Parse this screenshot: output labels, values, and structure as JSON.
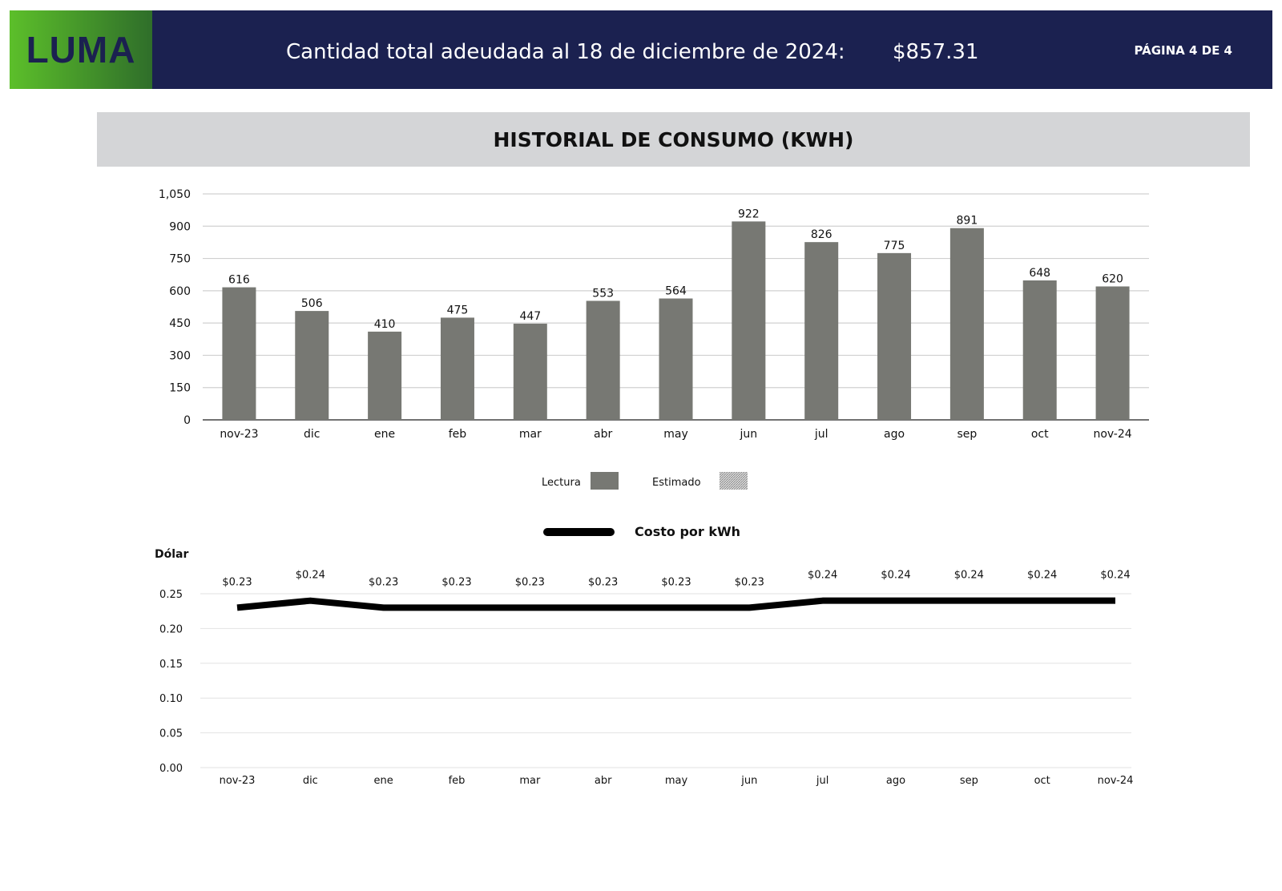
{
  "header": {
    "logo_text": "LUMA",
    "title": "Cantidad total adeudada al 18 de diciembre de 2024:",
    "amount": "$857.31",
    "page": "PÁGINA 4 DE 4",
    "colors": {
      "navy": "#1b2150",
      "green": "#5cbf2a"
    }
  },
  "section": {
    "title": "HISTORIAL DE CONSUMO (KWH)"
  },
  "chart_data": [
    {
      "type": "bar",
      "categories": [
        "nov-23",
        "dic",
        "ene",
        "feb",
        "mar",
        "abr",
        "may",
        "jun",
        "jul",
        "ago",
        "sep",
        "oct",
        "nov-24"
      ],
      "values": [
        616,
        506,
        410,
        475,
        447,
        553,
        564,
        922,
        826,
        775,
        891,
        648,
        620
      ],
      "ylim": [
        0,
        1050
      ],
      "yticks": [
        0,
        150,
        300,
        450,
        600,
        750,
        900,
        1050
      ],
      "ytick_labels": [
        "0",
        "150",
        "300",
        "450",
        "600",
        "750",
        "900",
        "1,050"
      ],
      "grid": true,
      "bar_color": "#777873",
      "legend": {
        "placement": "bottom",
        "entries": [
          {
            "name": "Lectura",
            "style": "solid",
            "color": "#777873"
          },
          {
            "name": "Estimado",
            "style": "hatched",
            "color": "#aaaaaa"
          }
        ]
      }
    },
    {
      "type": "line",
      "title": "Costo por kWh",
      "ylabel": "Dólar",
      "categories": [
        "nov-23",
        "dic",
        "ene",
        "feb",
        "mar",
        "abr",
        "may",
        "jun",
        "jul",
        "ago",
        "sep",
        "oct",
        "nov-24"
      ],
      "values": [
        0.23,
        0.24,
        0.23,
        0.23,
        0.23,
        0.23,
        0.23,
        0.23,
        0.24,
        0.24,
        0.24,
        0.24,
        0.24
      ],
      "data_labels": [
        "$0.23",
        "$0.24",
        "$0.23",
        "$0.23",
        "$0.23",
        "$0.23",
        "$0.23",
        "$0.23",
        "$0.24",
        "$0.24",
        "$0.24",
        "$0.24",
        "$0.24"
      ],
      "ylim": [
        0,
        0.25
      ],
      "yticks": [
        "0.00",
        "0.05",
        "0.10",
        "0.15",
        "0.20",
        "0.25"
      ],
      "grid": true,
      "line_color": "#000000",
      "legend": {
        "placement": "top"
      }
    }
  ]
}
